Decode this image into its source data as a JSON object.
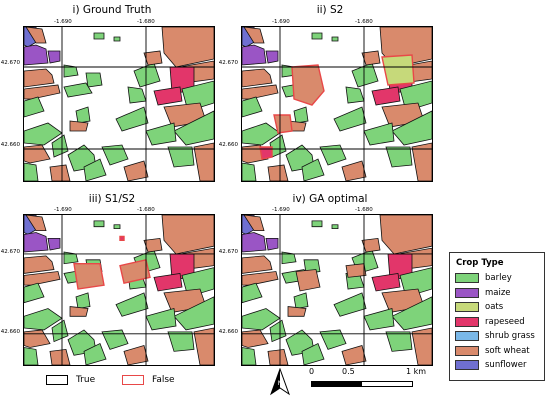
{
  "panels": [
    {
      "id": "gt",
      "title": "i) Ground Truth"
    },
    {
      "id": "s2",
      "title": "ii) S2"
    },
    {
      "id": "s1s2",
      "title": "iii) S1/S2"
    },
    {
      "id": "ga",
      "title": "iv) GA optimal"
    }
  ],
  "axes": {
    "x_ticks": [
      "-1.690",
      "-1.680"
    ],
    "y_ticks": [
      "42.670",
      "42.660"
    ]
  },
  "legend": {
    "title": "Crop Type",
    "items": [
      {
        "label": "barley",
        "color": "#7ed37a"
      },
      {
        "label": "maize",
        "color": "#9a55c5"
      },
      {
        "label": "oats",
        "color": "#c6d97a"
      },
      {
        "label": "rapeseed",
        "color": "#e2366a"
      },
      {
        "label": "shrub grass",
        "color": "#7ab8e8"
      },
      {
        "label": "soft wheat",
        "color": "#d98a6c"
      },
      {
        "label": "sunflower",
        "color": "#6f6fd1"
      }
    ]
  },
  "outline_legend": {
    "true_label": "True",
    "false_label": "False",
    "true_color": "#000000",
    "false_color": "#e84848"
  },
  "scalebar": {
    "ticks": [
      "0",
      "0.5",
      "1 km"
    ]
  },
  "colors": {
    "barley": "#7ed37a",
    "maize": "#9a55c5",
    "oats": "#c6d97a",
    "rapeseed": "#e2366a",
    "soft_wheat": "#d98a6c",
    "sunflower": "#6f6fd1",
    "false_outline": "#e84848"
  }
}
